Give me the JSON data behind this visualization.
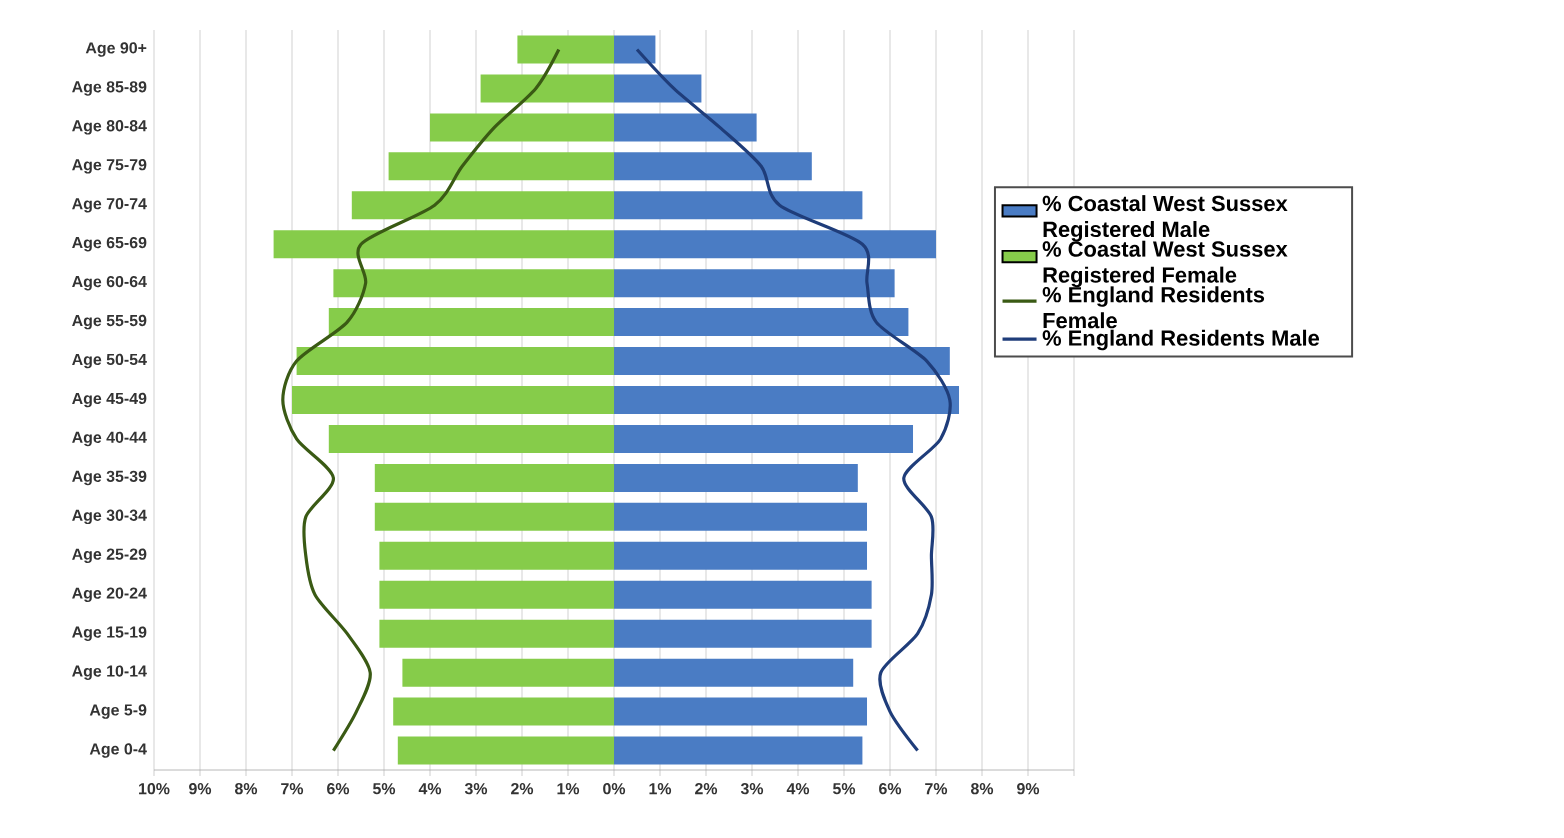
{
  "chart_data": {
    "type": "bar",
    "orientation": "horizontal",
    "stacked": true,
    "categories": [
      "Age 90+",
      "Age 85-89",
      "Age 80-84",
      "Age 75-79",
      "Age 70-74",
      "Age 65-69",
      "Age 60-64",
      "Age 55-59",
      "Age 50-54",
      "Age 45-49",
      "Age 40-44",
      "Age 35-39",
      "Age 30-34",
      "Age 25-29",
      "Age 20-24",
      "Age 15-19",
      "Age 10-14",
      "Age 5-9",
      "Age 0-4"
    ],
    "series": [
      {
        "name": "% Coastal West Sussex Registered Male",
        "type": "bar",
        "color": "#4a7cc4",
        "values": [
          0.9,
          1.9,
          3.1,
          4.3,
          5.4,
          7.0,
          6.1,
          6.4,
          7.3,
          7.5,
          6.5,
          5.3,
          5.5,
          5.5,
          5.6,
          5.6,
          5.2,
          5.5,
          5.4
        ]
      },
      {
        "name": "% Coastal West Sussex Registered Female",
        "type": "bar",
        "color": "#86cc4a",
        "values": [
          -2.1,
          -2.9,
          -4.0,
          -4.9,
          -5.7,
          -7.4,
          -6.1,
          -6.2,
          -6.9,
          -7.0,
          -6.2,
          -5.2,
          -5.2,
          -5.1,
          -5.1,
          -5.1,
          -4.6,
          -4.8,
          -4.7
        ]
      },
      {
        "name": "% England Residents Female",
        "type": "line",
        "color": "#3a5a14",
        "values": [
          -1.2,
          -1.7,
          -2.6,
          -3.3,
          -3.9,
          -5.5,
          -5.4,
          -5.8,
          -6.9,
          -7.2,
          -6.9,
          -6.1,
          -6.7,
          -6.7,
          -6.5,
          -5.8,
          -5.3,
          -5.6,
          -6.1
        ]
      },
      {
        "name": "% England Residents Male",
        "type": "line",
        "color": "#1f3d7a",
        "values": [
          0.5,
          1.3,
          2.3,
          3.2,
          3.6,
          5.4,
          5.5,
          5.7,
          6.8,
          7.3,
          7.1,
          6.3,
          6.9,
          6.9,
          6.9,
          6.6,
          5.8,
          6.0,
          6.6
        ]
      }
    ],
    "xlim": [
      -10,
      10
    ],
    "xticks": [
      {
        "value": -10,
        "label": "10%"
      },
      {
        "value": -9,
        "label": "9%"
      },
      {
        "value": -8,
        "label": "8%"
      },
      {
        "value": -7,
        "label": "7%"
      },
      {
        "value": -6,
        "label": "6%"
      },
      {
        "value": -5,
        "label": "5%"
      },
      {
        "value": -4,
        "label": "4%"
      },
      {
        "value": -3,
        "label": "3%"
      },
      {
        "value": -2,
        "label": "2%"
      },
      {
        "value": -1,
        "label": "1%"
      },
      {
        "value": 0,
        "label": "0%"
      },
      {
        "value": 1,
        "label": "1%"
      },
      {
        "value": 2,
        "label": "2%"
      },
      {
        "value": 3,
        "label": "3%"
      },
      {
        "value": 4,
        "label": "4%"
      },
      {
        "value": 5,
        "label": "5%"
      },
      {
        "value": 6,
        "label": "6%"
      },
      {
        "value": 7,
        "label": "7%"
      },
      {
        "value": 8,
        "label": "8%"
      },
      {
        "value": 9,
        "label": "9%"
      },
      {
        "value": 10,
        "label": null
      }
    ],
    "grid": "x",
    "legend": "right"
  }
}
